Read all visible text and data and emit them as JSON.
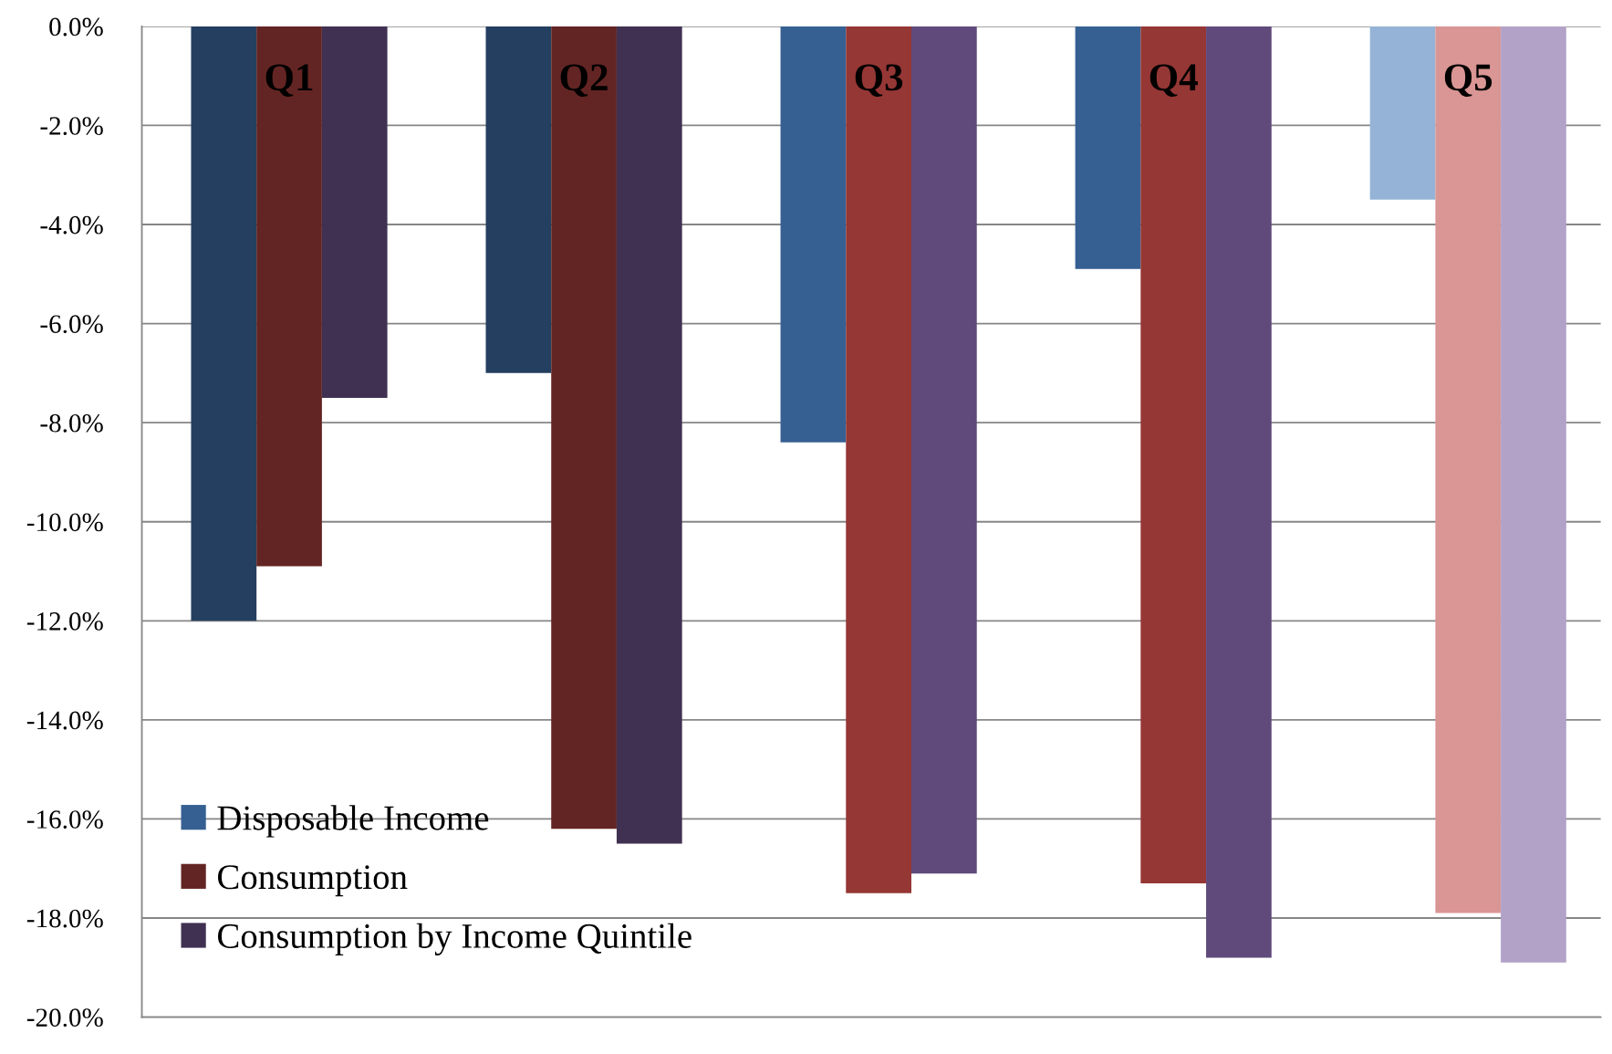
{
  "chart_data": {
    "type": "bar",
    "categories": [
      "Q1",
      "Q2",
      "Q3",
      "Q4",
      "Q5"
    ],
    "series": [
      {
        "name": "Disposable Income",
        "color": "#366092",
        "colors": [
          "#243f60",
          "#243f60",
          "#366092",
          "#366092",
          "#95b3d7"
        ],
        "values": [
          -12.0,
          -7.0,
          -8.4,
          -4.9,
          -3.5
        ]
      },
      {
        "name": "Consumption",
        "color": "#632523",
        "colors": [
          "#632523",
          "#632523",
          "#953735",
          "#953735",
          "#d99694"
        ],
        "values": [
          -10.9,
          -16.2,
          -17.5,
          -17.3,
          -17.9
        ]
      },
      {
        "name": "Consumption by Income Quintile",
        "color": "#403152",
        "colors": [
          "#403152",
          "#403152",
          "#604a7b",
          "#604a7b",
          "#b3a2c7"
        ],
        "values": [
          -7.5,
          -16.5,
          -17.1,
          -18.8,
          -18.9
        ]
      }
    ],
    "ylim": [
      -20,
      0
    ],
    "yticks": [
      {
        "value": 0,
        "label": "0.0%"
      },
      {
        "value": -2,
        "label": "-2.0%"
      },
      {
        "value": -4,
        "label": "-4.0%"
      },
      {
        "value": -6,
        "label": "-6.0%"
      },
      {
        "value": -8,
        "label": "-8.0%"
      },
      {
        "value": -10,
        "label": "-10.0%"
      },
      {
        "value": -12,
        "label": "-12.0%"
      },
      {
        "value": -14,
        "label": "-14.0%"
      },
      {
        "value": -16,
        "label": "-16.0%"
      },
      {
        "value": -18,
        "label": "-18.0%"
      },
      {
        "value": -20,
        "label": "-20.0%"
      }
    ],
    "grid": "y",
    "legend": "bottom left"
  }
}
